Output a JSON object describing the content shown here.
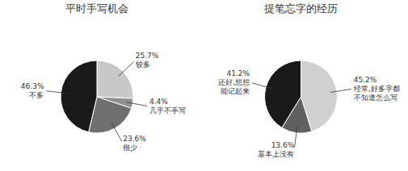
{
  "chart_data": [
    {
      "type": "pie",
      "title": "平时手写机会",
      "categories": [
        "较多",
        "几乎不手写",
        "很少",
        "不多"
      ],
      "values": [
        25.7,
        4.4,
        23.6,
        46.3
      ],
      "value_labels": [
        "25.7%",
        "4.4%",
        "23.6%",
        "46.3%"
      ],
      "colors": [
        "#c8c8c8",
        "#909090",
        "#707070",
        "#1a1a1a"
      ]
    },
    {
      "type": "pie",
      "title": "提笔忘字的经历",
      "categories": [
        "经常,好多字都\n不知道怎么写",
        "基本上没有",
        "还好,想想\n能记起来"
      ],
      "values": [
        45.2,
        13.6,
        41.2
      ],
      "value_labels": [
        "45.2%",
        "13.6%",
        "41.2%"
      ],
      "colors": [
        "#d0d0d0",
        "#606060",
        "#1a1a1a"
      ]
    }
  ]
}
